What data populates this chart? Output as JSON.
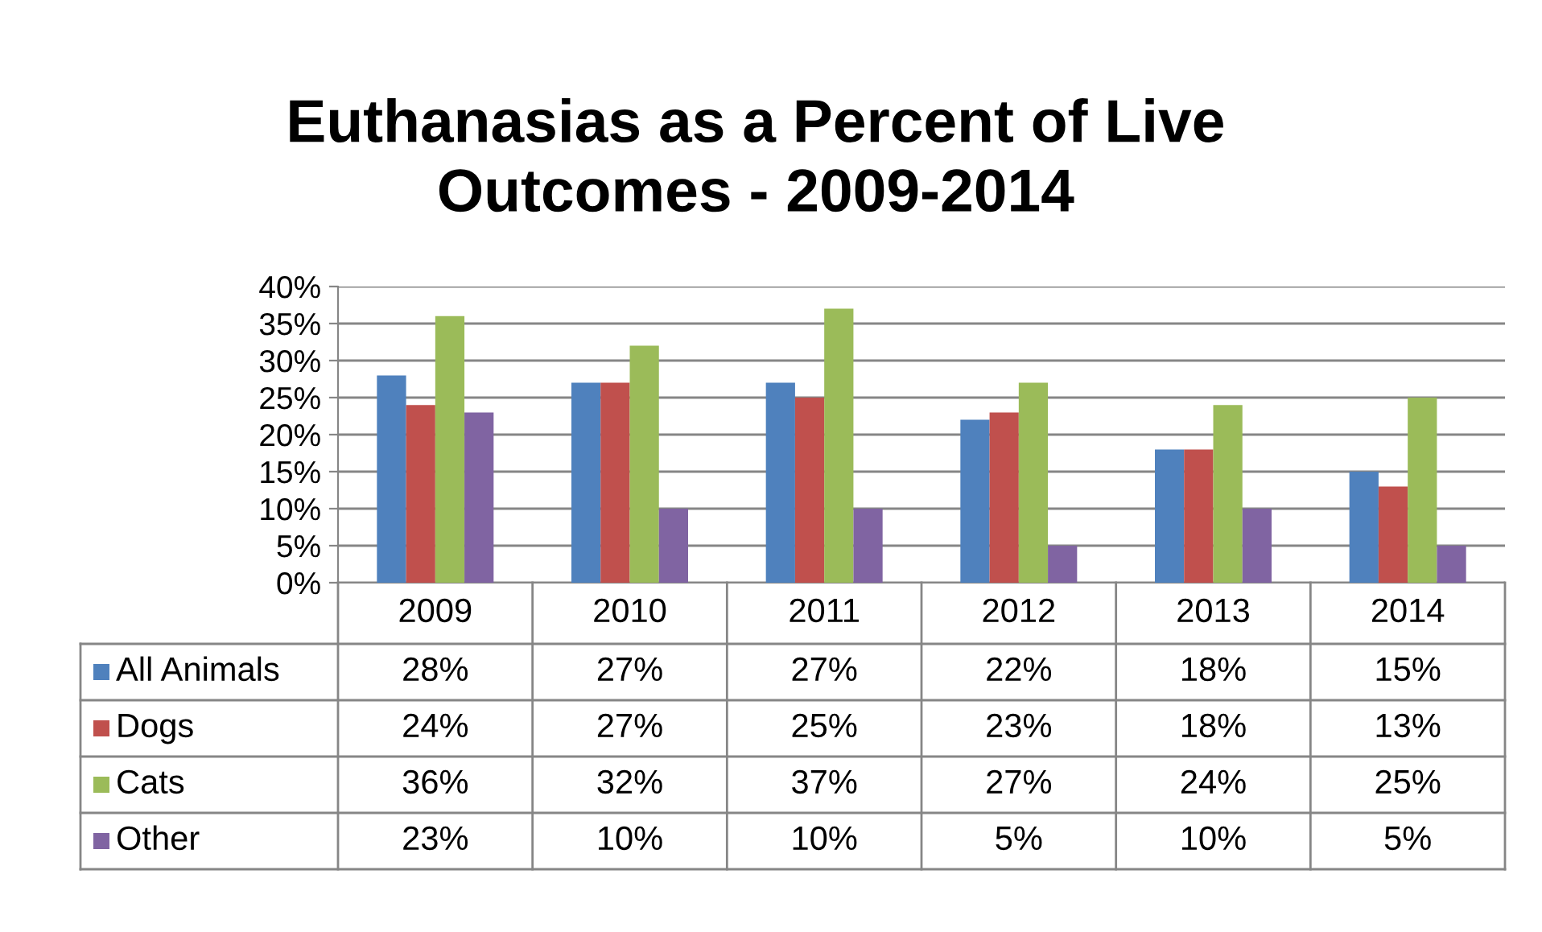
{
  "chart_data": {
    "type": "bar",
    "title": "Euthanasias as a Percent of Live\nOutcomes - 2009-2014",
    "categories": [
      "2009",
      "2010",
      "2011",
      "2012",
      "2013",
      "2014"
    ],
    "series": [
      {
        "name": "All Animals",
        "color": "#4f81bd",
        "values": [
          28,
          27,
          27,
          22,
          18,
          15
        ],
        "value_labels": [
          "28%",
          "27%",
          "27%",
          "22%",
          "18%",
          "15%"
        ]
      },
      {
        "name": "Dogs",
        "color": "#c0504d",
        "values": [
          24,
          27,
          25,
          23,
          18,
          13
        ],
        "value_labels": [
          "24%",
          "27%",
          "25%",
          "23%",
          "18%",
          "13%"
        ]
      },
      {
        "name": "Cats",
        "color": "#9bbb59",
        "values": [
          36,
          32,
          37,
          27,
          24,
          25
        ],
        "value_labels": [
          "36%",
          "32%",
          "37%",
          "27%",
          "24%",
          "25%"
        ]
      },
      {
        "name": "Other",
        "color": "#8064a2",
        "values": [
          23,
          10,
          10,
          5,
          10,
          5
        ],
        "value_labels": [
          "23%",
          "10%",
          "10%",
          "5%",
          "10%",
          "5%"
        ]
      }
    ],
    "ylim": [
      0,
      40
    ],
    "yticks": [
      {
        "value": 0,
        "label": "0%"
      },
      {
        "value": 5,
        "label": "5%"
      },
      {
        "value": 10,
        "label": "10%"
      },
      {
        "value": 15,
        "label": "15%"
      },
      {
        "value": 20,
        "label": "20%"
      },
      {
        "value": 25,
        "label": "25%"
      },
      {
        "value": 30,
        "label": "30%"
      },
      {
        "value": 35,
        "label": "35%"
      },
      {
        "value": 40,
        "label": "40%"
      }
    ],
    "grid": "y",
    "legend": "bottom"
  }
}
